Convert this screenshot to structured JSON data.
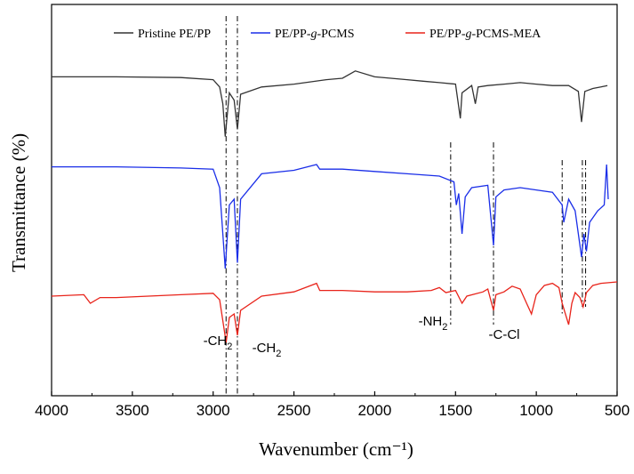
{
  "chart_data": {
    "type": "line",
    "title": "",
    "xlabel": "Wavenumber (cm⁻¹)",
    "ylabel": "Transmittance (%)",
    "xlim": [
      4000,
      500
    ],
    "x_reversed": true,
    "x_ticks": [
      "4000",
      "3500",
      "3000",
      "2500",
      "2000",
      "1500",
      "1000",
      "500"
    ],
    "y_ticks_shown": false,
    "legend_position": "top",
    "series": [
      {
        "name": "Pristine PE/PP",
        "color": "#333333",
        "offset": 2,
        "points": [
          [
            4000,
            0.92
          ],
          [
            3600,
            0.92
          ],
          [
            3200,
            0.91
          ],
          [
            3000,
            0.88
          ],
          [
            2960,
            0.78
          ],
          [
            2940,
            0.55
          ],
          [
            2925,
            0.1
          ],
          [
            2900,
            0.7
          ],
          [
            2870,
            0.6
          ],
          [
            2850,
            0.2
          ],
          [
            2830,
            0.68
          ],
          [
            2700,
            0.78
          ],
          [
            2500,
            0.82
          ],
          [
            2300,
            0.88
          ],
          [
            2200,
            0.9
          ],
          [
            2120,
            1.0
          ],
          [
            2000,
            0.92
          ],
          [
            1900,
            0.9
          ],
          [
            1800,
            0.88
          ],
          [
            1700,
            0.86
          ],
          [
            1600,
            0.84
          ],
          [
            1500,
            0.82
          ],
          [
            1470,
            0.35
          ],
          [
            1460,
            0.7
          ],
          [
            1400,
            0.8
          ],
          [
            1377,
            0.55
          ],
          [
            1360,
            0.78
          ],
          [
            1300,
            0.8
          ],
          [
            1200,
            0.82
          ],
          [
            1100,
            0.84
          ],
          [
            1000,
            0.82
          ],
          [
            900,
            0.8
          ],
          [
            800,
            0.8
          ],
          [
            740,
            0.72
          ],
          [
            720,
            0.3
          ],
          [
            700,
            0.72
          ],
          [
            650,
            0.76
          ],
          [
            600,
            0.78
          ],
          [
            560,
            0.8
          ]
        ]
      },
      {
        "name": "PE/PP-g-PCMS",
        "color": "#1a2ee8",
        "offset": 1,
        "points": [
          [
            4000,
            0.88
          ],
          [
            3600,
            0.88
          ],
          [
            3200,
            0.87
          ],
          [
            3000,
            0.86
          ],
          [
            2960,
            0.7
          ],
          [
            2925,
            0.0
          ],
          [
            2900,
            0.55
          ],
          [
            2870,
            0.6
          ],
          [
            2850,
            0.05
          ],
          [
            2830,
            0.6
          ],
          [
            2700,
            0.82
          ],
          [
            2500,
            0.85
          ],
          [
            2360,
            0.9
          ],
          [
            2340,
            0.86
          ],
          [
            2200,
            0.86
          ],
          [
            2000,
            0.84
          ],
          [
            1800,
            0.82
          ],
          [
            1600,
            0.8
          ],
          [
            1510,
            0.75
          ],
          [
            1495,
            0.55
          ],
          [
            1480,
            0.65
          ],
          [
            1460,
            0.3
          ],
          [
            1440,
            0.62
          ],
          [
            1400,
            0.7
          ],
          [
            1300,
            0.72
          ],
          [
            1265,
            0.2
          ],
          [
            1250,
            0.62
          ],
          [
            1200,
            0.68
          ],
          [
            1100,
            0.7
          ],
          [
            1000,
            0.68
          ],
          [
            900,
            0.66
          ],
          [
            840,
            0.55
          ],
          [
            830,
            0.4
          ],
          [
            800,
            0.6
          ],
          [
            760,
            0.5
          ],
          [
            720,
            0.1
          ],
          [
            705,
            0.3
          ],
          [
            690,
            0.15
          ],
          [
            670,
            0.4
          ],
          [
            620,
            0.5
          ],
          [
            580,
            0.55
          ],
          [
            565,
            0.9
          ],
          [
            555,
            0.6
          ]
        ]
      },
      {
        "name": "PE/PP-g-PCMS-MEA",
        "color": "#e8231a",
        "offset": 0,
        "points": [
          [
            4000,
            0.8
          ],
          [
            3800,
            0.82
          ],
          [
            3760,
            0.7
          ],
          [
            3700,
            0.78
          ],
          [
            3600,
            0.78
          ],
          [
            3400,
            0.8
          ],
          [
            3200,
            0.82
          ],
          [
            3000,
            0.84
          ],
          [
            2960,
            0.75
          ],
          [
            2920,
            0.15
          ],
          [
            2900,
            0.5
          ],
          [
            2870,
            0.55
          ],
          [
            2850,
            0.25
          ],
          [
            2830,
            0.6
          ],
          [
            2700,
            0.8
          ],
          [
            2500,
            0.86
          ],
          [
            2360,
            0.98
          ],
          [
            2340,
            0.88
          ],
          [
            2200,
            0.88
          ],
          [
            2000,
            0.86
          ],
          [
            1800,
            0.86
          ],
          [
            1650,
            0.88
          ],
          [
            1600,
            0.92
          ],
          [
            1560,
            0.85
          ],
          [
            1500,
            0.88
          ],
          [
            1460,
            0.7
          ],
          [
            1430,
            0.8
          ],
          [
            1330,
            0.86
          ],
          [
            1300,
            0.9
          ],
          [
            1265,
            0.6
          ],
          [
            1250,
            0.82
          ],
          [
            1200,
            0.86
          ],
          [
            1150,
            0.94
          ],
          [
            1100,
            0.9
          ],
          [
            1060,
            0.7
          ],
          [
            1030,
            0.55
          ],
          [
            1000,
            0.82
          ],
          [
            950,
            0.95
          ],
          [
            900,
            0.98
          ],
          [
            860,
            0.92
          ],
          [
            840,
            0.7
          ],
          [
            800,
            0.4
          ],
          [
            780,
            0.7
          ],
          [
            760,
            0.85
          ],
          [
            730,
            0.78
          ],
          [
            710,
            0.65
          ],
          [
            690,
            0.85
          ],
          [
            650,
            0.95
          ],
          [
            600,
            0.98
          ],
          [
            500,
            1.0
          ]
        ]
      }
    ],
    "vertical_markers": [
      2920,
      2850,
      1530,
      1265,
      840,
      715,
      695
    ],
    "annotations": [
      {
        "text": "-CH",
        "sub": "2",
        "x": 2965,
        "level": 0.3
      },
      {
        "text": "-CH",
        "sub": "2",
        "x": 2780,
        "level": 0.27
      },
      {
        "text": "-NH",
        "sub": "2",
        "x": 1570,
        "level": 0.45
      },
      {
        "text": "-C-Cl",
        "sub": "",
        "x": 1265,
        "level": 0.42
      }
    ]
  }
}
